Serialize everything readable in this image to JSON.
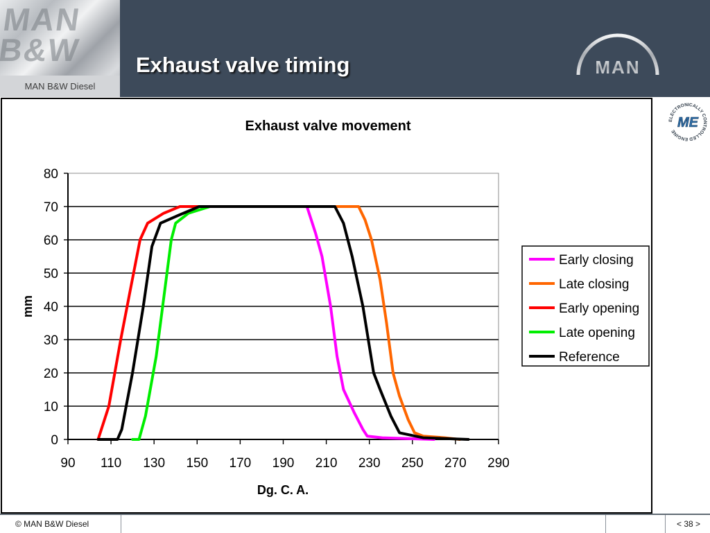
{
  "header": {
    "brand_watermark": "MAN B&W",
    "brand_caption": "MAN B&W Diesel",
    "title": "Exhaust valve timing",
    "logo_text": "MAN"
  },
  "badge": {
    "center_text": "ME",
    "ring_text": "ELECTRONICALLY CONTROLLED ENGINE"
  },
  "footer": {
    "copyright": "© MAN B&W Diesel",
    "page": "< 38 >"
  },
  "colors": {
    "header_bg": "#3d4a5a",
    "early_closing": "#ff00ff",
    "late_closing": "#ff6600",
    "early_opening": "#ff0000",
    "late_opening": "#00ee00",
    "reference": "#000000"
  },
  "chart_data": {
    "type": "line",
    "title": "Exhaust valve movement",
    "xlabel": "Dg. C. A.",
    "ylabel": "mm",
    "xlim": [
      90,
      290
    ],
    "ylim": [
      0,
      80
    ],
    "xticks": [
      90,
      110,
      130,
      150,
      170,
      190,
      210,
      230,
      250,
      270,
      290
    ],
    "yticks": [
      0,
      10,
      20,
      30,
      40,
      50,
      60,
      70,
      80
    ],
    "grid": "horizontal",
    "legend_position": "right",
    "series": [
      {
        "name": "Early closing",
        "color": "#ff00ff",
        "points": [
          [
            156,
            70
          ],
          [
            201,
            70
          ],
          [
            205,
            62
          ],
          [
            208,
            55
          ],
          [
            212,
            40
          ],
          [
            215,
            25
          ],
          [
            218,
            15
          ],
          [
            223,
            8
          ],
          [
            227,
            3
          ],
          [
            229,
            1
          ],
          [
            236,
            0.5
          ],
          [
            260,
            0
          ]
        ]
      },
      {
        "name": "Late closing",
        "color": "#ff6600",
        "points": [
          [
            214,
            70
          ],
          [
            225,
            70
          ],
          [
            228,
            66
          ],
          [
            231,
            60
          ],
          [
            235,
            48
          ],
          [
            238,
            35
          ],
          [
            241,
            20
          ],
          [
            244,
            13
          ],
          [
            248,
            6
          ],
          [
            251,
            2
          ],
          [
            255,
            1
          ],
          [
            265,
            0.5
          ],
          [
            272,
            0
          ]
        ]
      },
      {
        "name": "Early opening",
        "color": "#ff0000",
        "points": [
          [
            104,
            0
          ],
          [
            109,
            10
          ],
          [
            114.5,
            30
          ],
          [
            119,
            45
          ],
          [
            123.5,
            60
          ],
          [
            127,
            65
          ],
          [
            134.5,
            68
          ],
          [
            142,
            70
          ],
          [
            151,
            70
          ]
        ]
      },
      {
        "name": "Late opening",
        "color": "#00ee00",
        "points": [
          [
            120,
            0
          ],
          [
            123,
            0
          ],
          [
            126,
            7
          ],
          [
            131,
            25
          ],
          [
            135,
            45
          ],
          [
            138,
            60
          ],
          [
            140,
            65
          ],
          [
            146,
            68
          ],
          [
            156,
            70
          ]
        ]
      },
      {
        "name": "Reference",
        "color": "#000000",
        "points": [
          [
            104,
            0
          ],
          [
            113,
            0
          ],
          [
            115,
            3
          ],
          [
            120,
            20
          ],
          [
            125,
            40
          ],
          [
            129,
            58
          ],
          [
            133,
            65
          ],
          [
            140,
            67
          ],
          [
            151,
            70
          ],
          [
            214,
            70
          ],
          [
            218,
            65
          ],
          [
            222,
            55
          ],
          [
            227,
            40
          ],
          [
            232,
            20
          ],
          [
            235,
            15
          ],
          [
            240,
            7
          ],
          [
            244,
            2
          ],
          [
            255,
            0.5
          ],
          [
            276,
            0
          ]
        ]
      }
    ]
  }
}
